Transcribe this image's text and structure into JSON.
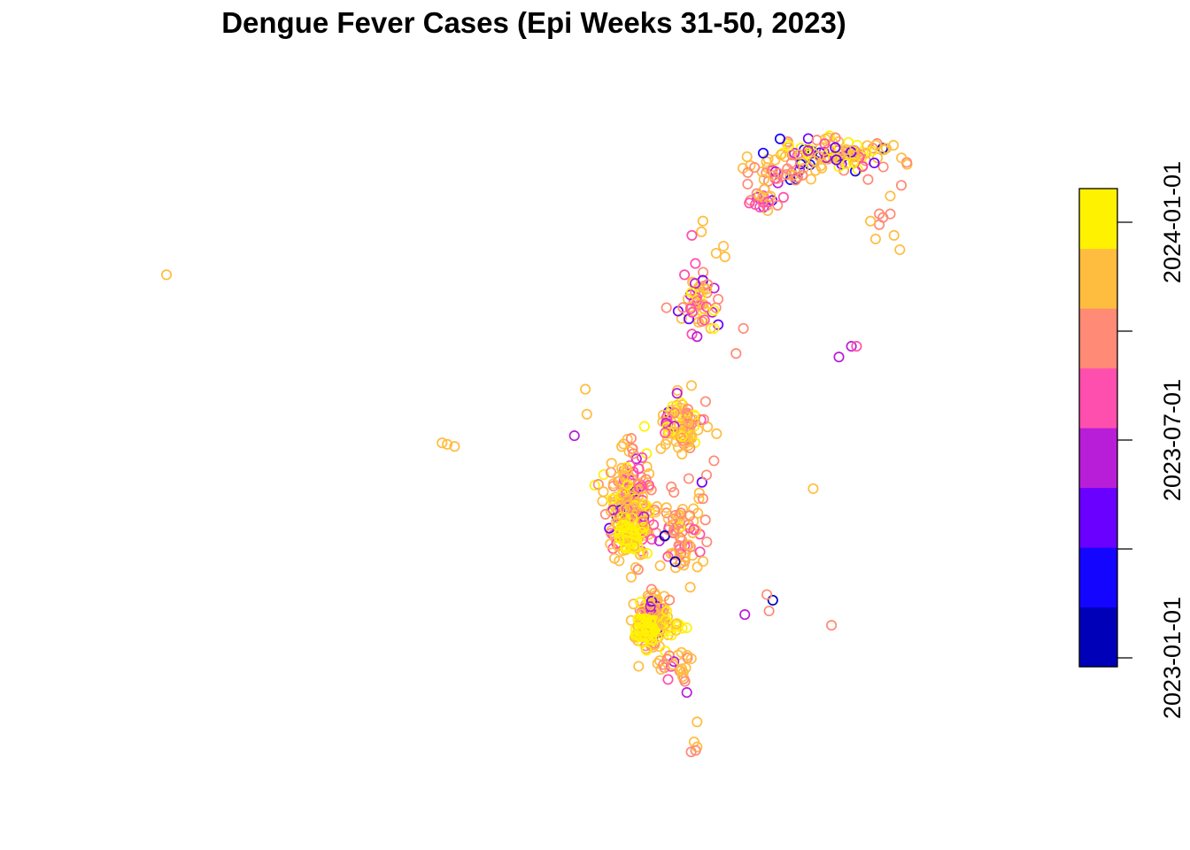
{
  "chart_data": {
    "type": "scatter",
    "title": "Dengue Fever Cases (Epi Weeks 31-50, 2023)",
    "xlabel": "",
    "ylabel": "",
    "grid": false,
    "axes": "none",
    "legend": {
      "kind": "colorbar",
      "placement": "right",
      "ticks": [
        "2023-01-01",
        "2023-07-01",
        "2024-01-01"
      ],
      "bands": [
        "#0000B8",
        "#1405FF",
        "#6A00FF",
        "#B81ED8",
        "#FF4FAE",
        "#FF8A75",
        "#FFBD40",
        "#FFF200"
      ]
    },
    "color_scale": [
      "#0000B8",
      "#1405FF",
      "#6A00FF",
      "#B81ED8",
      "#FF4FAE",
      "#FF8A75",
      "#FFBD40",
      "#FFF200"
    ],
    "clusters": [
      {
        "region": "northeast",
        "cx": 0.905,
        "cy": 0.885,
        "sx": 0.04,
        "sy": 0.012,
        "n": 110,
        "color_weights": [
          0.02,
          0.03,
          0.04,
          0.05,
          0.07,
          0.2,
          0.44,
          0.15
        ]
      },
      {
        "region": "north-mid",
        "cx": 0.838,
        "cy": 0.855,
        "sx": 0.025,
        "sy": 0.008,
        "n": 35,
        "color_weights": [
          0.02,
          0.02,
          0.03,
          0.08,
          0.12,
          0.33,
          0.35,
          0.05
        ]
      },
      {
        "region": "north-west",
        "cx": 0.808,
        "cy": 0.822,
        "sx": 0.014,
        "sy": 0.01,
        "n": 22,
        "color_weights": [
          0,
          0,
          0.02,
          0.1,
          0.25,
          0.33,
          0.3,
          0
        ]
      },
      {
        "region": "upper-mid",
        "cx": 0.728,
        "cy": 0.676,
        "sx": 0.015,
        "sy": 0.02,
        "n": 50,
        "color_weights": [
          0.02,
          0.02,
          0.06,
          0.1,
          0.2,
          0.22,
          0.33,
          0.05
        ]
      },
      {
        "region": "central",
        "cx": 0.7,
        "cy": 0.505,
        "sx": 0.016,
        "sy": 0.02,
        "n": 90,
        "color_weights": [
          0.01,
          0.01,
          0.03,
          0.04,
          0.1,
          0.16,
          0.45,
          0.2
        ]
      },
      {
        "region": "south-west",
        "cx": 0.632,
        "cy": 0.39,
        "sx": 0.02,
        "sy": 0.035,
        "n": 220,
        "color_weights": [
          0.005,
          0.005,
          0.01,
          0.04,
          0.12,
          0.2,
          0.5,
          0.12
        ]
      },
      {
        "region": "south-core",
        "cx": 0.632,
        "cy": 0.35,
        "sx": 0.008,
        "sy": 0.012,
        "n": 60,
        "color_weights": [
          0,
          0,
          0,
          0,
          0,
          0.05,
          0.3,
          0.65
        ]
      },
      {
        "region": "south-east",
        "cx": 0.7,
        "cy": 0.355,
        "sx": 0.015,
        "sy": 0.03,
        "n": 70,
        "color_weights": [
          0.01,
          0.01,
          0.03,
          0.04,
          0.15,
          0.3,
          0.44,
          0.02
        ]
      },
      {
        "region": "far-south",
        "cx": 0.66,
        "cy": 0.235,
        "sx": 0.012,
        "sy": 0.02,
        "n": 140,
        "color_weights": [
          0,
          0,
          0.02,
          0.04,
          0.12,
          0.2,
          0.4,
          0.22
        ]
      },
      {
        "region": "far-south-core",
        "cx": 0.652,
        "cy": 0.22,
        "sx": 0.008,
        "sy": 0.01,
        "n": 70,
        "color_weights": [
          0,
          0,
          0,
          0,
          0,
          0,
          0.08,
          0.92
        ]
      },
      {
        "region": "far-south-east",
        "cx": 0.69,
        "cy": 0.225,
        "sx": 0.01,
        "sy": 0.006,
        "n": 14,
        "color_weights": [
          0,
          0,
          0,
          0,
          0,
          0,
          0.2,
          0.8
        ]
      },
      {
        "region": "far-south-tail",
        "cx": 0.69,
        "cy": 0.17,
        "sx": 0.015,
        "sy": 0.012,
        "n": 25,
        "color_weights": [
          0,
          0,
          0,
          0.05,
          0.15,
          0.4,
          0.4,
          0
        ]
      }
    ],
    "points": [
      {
        "x": 0.0,
        "y": 0.715,
        "c": 6
      },
      {
        "x": 0.375,
        "y": 0.48,
        "c": 6
      },
      {
        "x": 0.382,
        "y": 0.478,
        "c": 6
      },
      {
        "x": 0.392,
        "y": 0.475,
        "c": 6
      },
      {
        "x": 0.555,
        "y": 0.49,
        "c": 3
      },
      {
        "x": 0.57,
        "y": 0.555,
        "c": 6
      },
      {
        "x": 0.572,
        "y": 0.52,
        "c": 6
      },
      {
        "x": 0.7,
        "y": 0.495,
        "c": 6
      },
      {
        "x": 0.735,
        "y": 0.67,
        "c": 4
      },
      {
        "x": 0.728,
        "y": 0.775,
        "c": 6
      },
      {
        "x": 0.73,
        "y": 0.79,
        "c": 6
      },
      {
        "x": 0.745,
        "y": 0.64,
        "c": 7
      },
      {
        "x": 0.745,
        "y": 0.665,
        "c": 7
      },
      {
        "x": 0.705,
        "y": 0.715,
        "c": 4
      },
      {
        "x": 0.775,
        "y": 0.605,
        "c": 5
      },
      {
        "x": 0.785,
        "y": 0.64,
        "c": 5
      },
      {
        "x": 0.812,
        "y": 0.885,
        "c": 1
      },
      {
        "x": 0.835,
        "y": 0.905,
        "c": 1
      },
      {
        "x": 0.79,
        "y": 0.88,
        "c": 6
      },
      {
        "x": 0.715,
        "y": 0.77,
        "c": 4
      },
      {
        "x": 0.735,
        "y": 0.435,
        "c": 5
      },
      {
        "x": 0.725,
        "y": 0.41,
        "c": 6
      },
      {
        "x": 0.745,
        "y": 0.455,
        "c": 5
      },
      {
        "x": 0.787,
        "y": 0.24,
        "c": 3
      },
      {
        "x": 0.82,
        "y": 0.245,
        "c": 5
      },
      {
        "x": 0.825,
        "y": 0.26,
        "c": 0
      },
      {
        "x": 0.817,
        "y": 0.268,
        "c": 5
      },
      {
        "x": 0.88,
        "y": 0.416,
        "c": 6
      },
      {
        "x": 0.905,
        "y": 0.225,
        "c": 5
      },
      {
        "x": 0.915,
        "y": 0.6,
        "c": 3
      },
      {
        "x": 0.932,
        "y": 0.615,
        "c": 3
      },
      {
        "x": 0.939,
        "y": 0.615,
        "c": 4
      },
      {
        "x": 0.965,
        "y": 0.765,
        "c": 6
      },
      {
        "x": 0.97,
        "y": 0.785,
        "c": 5
      },
      {
        "x": 0.975,
        "y": 0.795,
        "c": 5
      },
      {
        "x": 0.985,
        "y": 0.8,
        "c": 5
      },
      {
        "x": 0.99,
        "y": 0.77,
        "c": 6
      },
      {
        "x": 0.998,
        "y": 0.75,
        "c": 6
      },
      {
        "x": 1.0,
        "y": 0.84,
        "c": 5
      },
      {
        "x": 0.985,
        "y": 0.825,
        "c": 6
      },
      {
        "x": 0.97,
        "y": 0.8,
        "c": 5
      },
      {
        "x": 0.958,
        "y": 0.79,
        "c": 6
      },
      {
        "x": 0.76,
        "y": 0.74,
        "c": 6
      },
      {
        "x": 0.748,
        "y": 0.745,
        "c": 6
      },
      {
        "x": 0.758,
        "y": 0.755,
        "c": 6
      },
      {
        "x": 0.722,
        "y": 0.09,
        "c": 6
      },
      {
        "x": 0.718,
        "y": 0.062,
        "c": 6
      },
      {
        "x": 0.722,
        "y": 0.055,
        "c": 6
      },
      {
        "x": 0.714,
        "y": 0.048,
        "c": 5
      },
      {
        "x": 0.72,
        "y": 0.05,
        "c": 5
      },
      {
        "x": 0.73,
        "y": 0.402,
        "c": 5
      },
      {
        "x": 0.7,
        "y": 0.382,
        "c": 5
      }
    ]
  }
}
